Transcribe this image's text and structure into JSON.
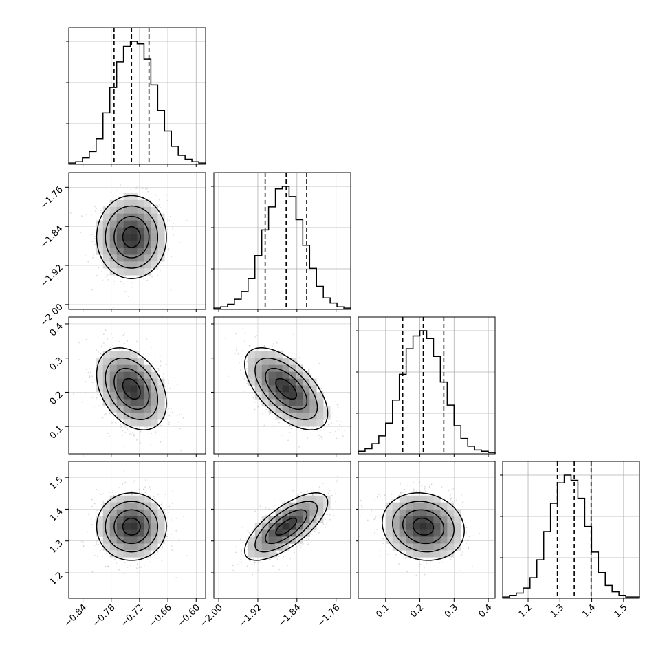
{
  "chart_data": {
    "type": "corner",
    "title": "",
    "grid": true,
    "parameters": [
      {
        "index": 0,
        "range": [
          -0.87,
          -0.58
        ],
        "ticks": [
          "-0.84",
          "-0.78",
          "-0.72",
          "-0.66",
          "-0.60"
        ],
        "tick_values": [
          -0.84,
          -0.78,
          -0.72,
          -0.66,
          -0.6
        ],
        "quantiles": [
          -0.774,
          -0.737,
          -0.7
        ],
        "hist": [
          1,
          2,
          5,
          10,
          20,
          40,
          60,
          80,
          92,
          96,
          94,
          82,
          62,
          42,
          26,
          14,
          7,
          4,
          2,
          1
        ]
      },
      {
        "index": 1,
        "range": [
          -2.01,
          -1.73
        ],
        "ticks": [
          "-2.00",
          "-1.92",
          "-1.84",
          "-1.76"
        ],
        "tick_values": [
          -2.0,
          -1.92,
          -1.84,
          -1.76
        ],
        "quantiles": [
          -1.905,
          -1.862,
          -1.82
        ],
        "hist": [
          1,
          2,
          4,
          8,
          14,
          24,
          42,
          62,
          80,
          94,
          96,
          88,
          70,
          50,
          32,
          18,
          9,
          5,
          2,
          1
        ]
      },
      {
        "index": 2,
        "range": [
          0.02,
          0.42
        ],
        "ticks": [
          "0.1",
          "0.2",
          "0.3",
          "0.4"
        ],
        "tick_values": [
          0.1,
          0.2,
          0.3,
          0.4
        ],
        "quantiles": [
          0.15,
          0.21,
          0.27
        ],
        "hist": [
          2,
          4,
          8,
          14,
          24,
          42,
          62,
          82,
          92,
          96,
          90,
          76,
          56,
          38,
          22,
          12,
          6,
          3,
          2,
          1
        ]
      },
      {
        "index": 3,
        "range": [
          1.12,
          1.55
        ],
        "ticks": [
          "1.2",
          "1.3",
          "1.4",
          "1.5"
        ],
        "tick_values": [
          1.2,
          1.3,
          1.4,
          1.5
        ],
        "quantiles": [
          1.292,
          1.345,
          1.398
        ],
        "hist": [
          1,
          2,
          4,
          8,
          16,
          30,
          52,
          74,
          90,
          96,
          92,
          78,
          56,
          36,
          20,
          10,
          5,
          2,
          1,
          1
        ]
      }
    ],
    "joint": [
      {
        "x": 0,
        "y": 1,
        "rho": 0.0
      },
      {
        "x": 0,
        "y": 2,
        "rho": -0.35
      },
      {
        "x": 1,
        "y": 2,
        "rho": -0.6
      },
      {
        "x": 0,
        "y": 3,
        "rho": 0.0
      },
      {
        "x": 1,
        "y": 3,
        "rho": 0.72
      },
      {
        "x": 2,
        "y": 3,
        "rho": -0.12
      }
    ]
  }
}
